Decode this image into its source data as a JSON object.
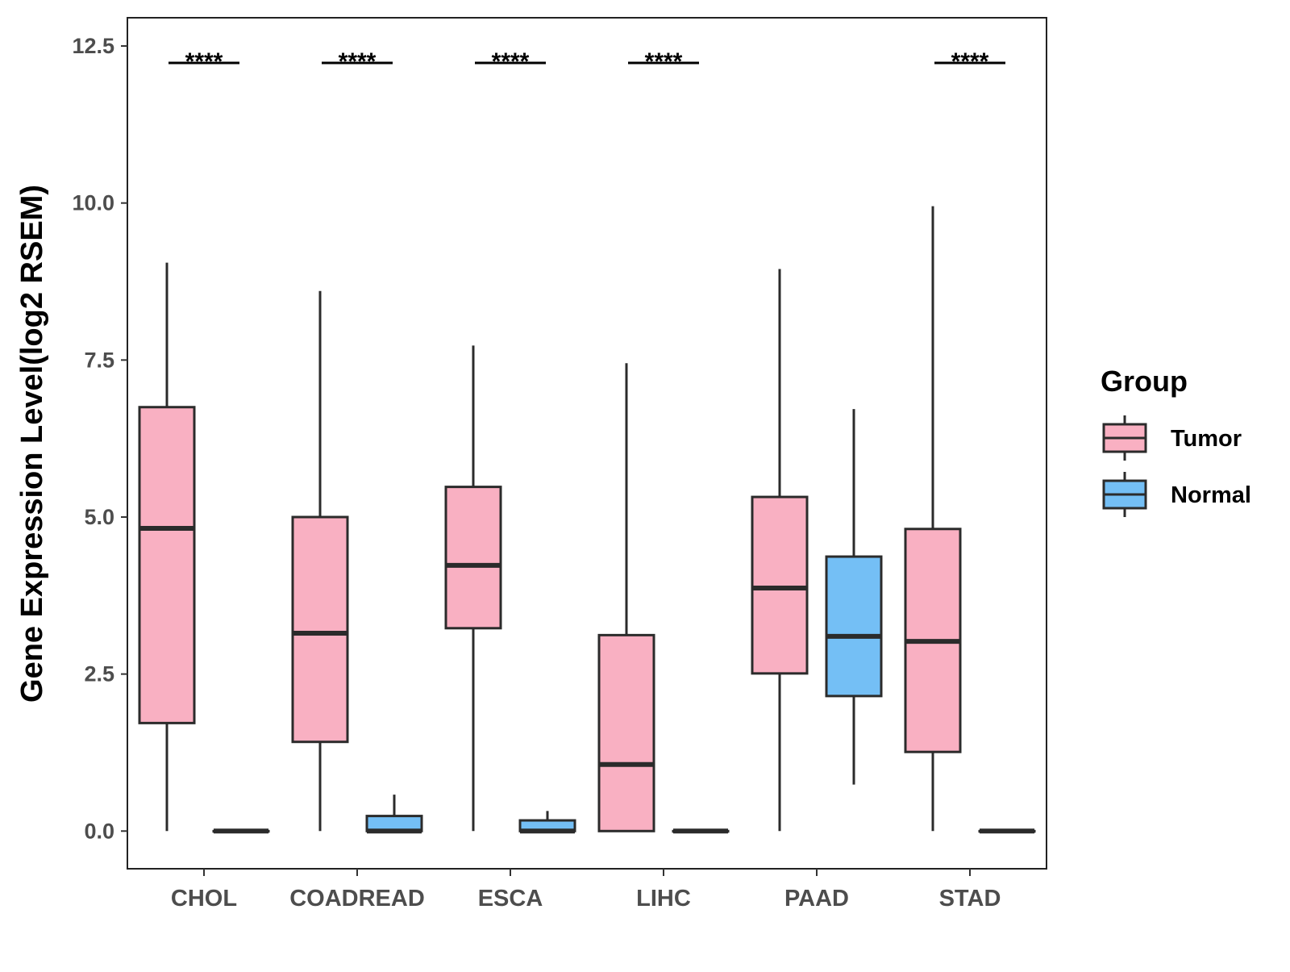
{
  "chart_data": {
    "type": "boxplot",
    "title": "",
    "xlabel": "",
    "ylabel": "Gene Expression Level(log2 RSEM)",
    "ylim": [
      -0.6,
      12.95
    ],
    "yticks": [
      0.0,
      2.5,
      5.0,
      7.5,
      10.0,
      12.5
    ],
    "ytick_labels": [
      "0.0",
      "2.5",
      "5.0",
      "7.5",
      "10.0",
      "12.5"
    ],
    "grid": false,
    "categories": [
      "CHOL",
      "COADREAD",
      "ESCA",
      "LIHC",
      "PAAD",
      "STAD"
    ],
    "legend": {
      "title": "Group",
      "position": "right",
      "entries": [
        {
          "name": "Tumor",
          "color": "#f9b0c2"
        },
        {
          "name": "Normal",
          "color": "#74bff5"
        }
      ]
    },
    "series": [
      {
        "name": "Tumor",
        "color": "#f9b0c2",
        "boxes": [
          {
            "min": 0.0,
            "q1": 1.72,
            "median": 4.82,
            "q3": 6.75,
            "max": 9.05
          },
          {
            "min": 0.0,
            "q1": 1.42,
            "median": 3.15,
            "q3": 5.0,
            "max": 8.6
          },
          {
            "min": 0.0,
            "q1": 3.23,
            "median": 4.23,
            "q3": 5.48,
            "max": 7.73
          },
          {
            "min": 0.0,
            "q1": 0.0,
            "median": 1.06,
            "q3": 3.12,
            "max": 7.45
          },
          {
            "min": 0.0,
            "q1": 2.51,
            "median": 3.87,
            "q3": 5.32,
            "max": 8.95
          },
          {
            "min": 0.0,
            "q1": 1.26,
            "median": 3.02,
            "q3": 4.81,
            "max": 9.95
          }
        ]
      },
      {
        "name": "Normal",
        "color": "#74bff5",
        "boxes": [
          {
            "min": 0.0,
            "q1": 0.0,
            "median": 0.0,
            "q3": 0.0,
            "max": 0.0
          },
          {
            "min": 0.0,
            "q1": 0.0,
            "median": 0.0,
            "q3": 0.24,
            "max": 0.58
          },
          {
            "min": 0.0,
            "q1": 0.0,
            "median": 0.0,
            "q3": 0.17,
            "max": 0.32
          },
          {
            "min": 0.0,
            "q1": 0.0,
            "median": 0.0,
            "q3": 0.0,
            "max": 0.0
          },
          {
            "min": 0.74,
            "q1": 2.15,
            "median": 3.1,
            "q3": 4.37,
            "max": 6.72
          },
          {
            "min": 0.0,
            "q1": 0.0,
            "median": 0.0,
            "q3": 0.0,
            "max": 0.0
          }
        ]
      }
    ],
    "annotations": [
      {
        "category": "CHOL",
        "text": "****",
        "y": 12.23
      },
      {
        "category": "COADREAD",
        "text": "****",
        "y": 12.23
      },
      {
        "category": "ESCA",
        "text": "****",
        "y": 12.23
      },
      {
        "category": "LIHC",
        "text": "****",
        "y": 12.23
      },
      {
        "category": "STAD",
        "text": "****",
        "y": 12.23
      }
    ]
  }
}
